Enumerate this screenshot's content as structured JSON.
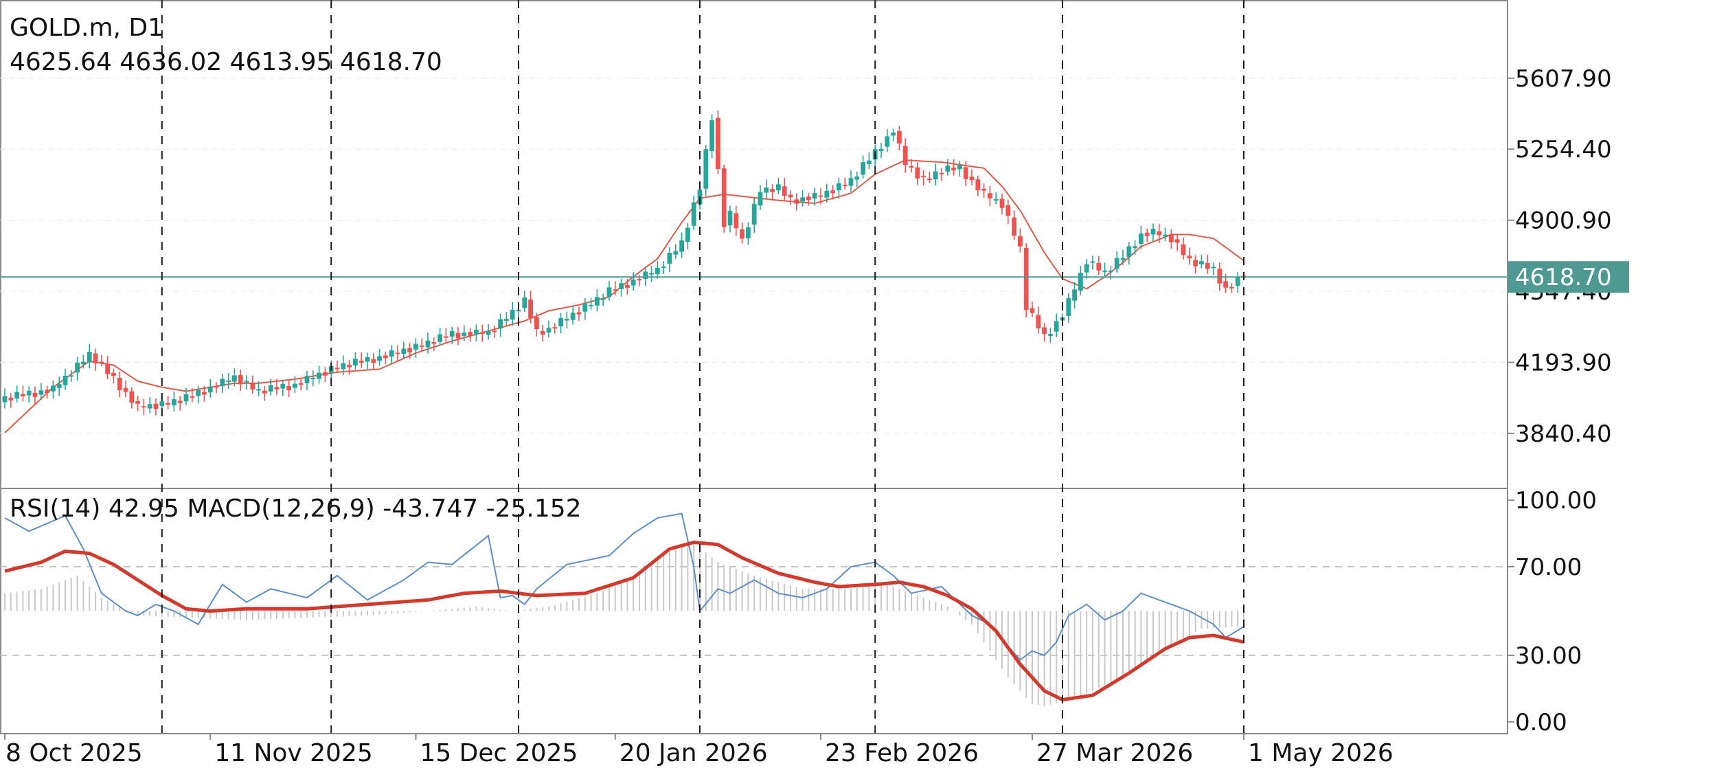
{
  "header": {
    "title": "GOLD.m, D1",
    "ohlc": "4625.64 4636.02 4613.95 4618.70",
    "indicators": "RSI(14) 42.95 MACD(12,26,9) -43.747 -25.152"
  },
  "chart_data": {
    "type": "candlestick",
    "symbol": "GOLD.m",
    "timeframe": "D1",
    "current_price": 4618.7,
    "current_price_label": "4618.70",
    "ohlc_last": {
      "open": 4625.64,
      "high": 4636.02,
      "low": 4613.95,
      "close": 4618.7
    },
    "price_ylim": [
      3570,
      5990
    ],
    "price_ticks": [
      3840.4,
      4193.9,
      4547.4,
      4900.9,
      5254.4,
      5607.9
    ],
    "price_tick_labels": [
      "3840.40",
      "4193.90",
      "4547.40",
      "4900.90",
      "5254.40",
      "5607.90"
    ],
    "x_labels": [
      "8 Oct 2025",
      "11 Nov 2025",
      "15 Dec 2025",
      "20 Jan 2026",
      "23 Feb 2026",
      "27 Mar 2026",
      "1 May 2026"
    ],
    "indicator_ylim": [
      -5,
      105
    ],
    "indicator_ticks": [
      0,
      30,
      70,
      100
    ],
    "indicator_tick_labels": [
      "0.00",
      "30.00",
      "70.00",
      "100.00"
    ],
    "indicator_levels": [
      30,
      70
    ],
    "close_points": [
      [
        0,
        4015
      ],
      [
        8,
        4060
      ],
      [
        14,
        4235
      ],
      [
        18,
        4112
      ],
      [
        22,
        3970
      ],
      [
        26,
        3984
      ],
      [
        30,
        4015
      ],
      [
        38,
        4120
      ],
      [
        42,
        4050
      ],
      [
        48,
        4082
      ],
      [
        55,
        4172
      ],
      [
        62,
        4219
      ],
      [
        68,
        4270
      ],
      [
        74,
        4335
      ],
      [
        80,
        4340
      ],
      [
        86,
        4497
      ],
      [
        88,
        4345
      ],
      [
        90,
        4360
      ],
      [
        95,
        4450
      ],
      [
        100,
        4547
      ],
      [
        104,
        4600
      ],
      [
        108,
        4655
      ],
      [
        112,
        4790
      ],
      [
        115,
        5060
      ],
      [
        117,
        5420
      ],
      [
        119,
        4880
      ],
      [
        120,
        4930
      ],
      [
        122,
        4800
      ],
      [
        125,
        5050
      ],
      [
        128,
        5060
      ],
      [
        130,
        5000
      ],
      [
        135,
        5023
      ],
      [
        140,
        5100
      ],
      [
        144,
        5240
      ],
      [
        147,
        5350
      ],
      [
        149,
        5180
      ],
      [
        152,
        5100
      ],
      [
        155,
        5150
      ],
      [
        158,
        5160
      ],
      [
        162,
        5030
      ],
      [
        165,
        4980
      ],
      [
        168,
        4760
      ],
      [
        169,
        4470
      ],
      [
        170,
        4420
      ],
      [
        172,
        4320
      ],
      [
        175,
        4430
      ],
      [
        177,
        4560
      ],
      [
        179,
        4700
      ],
      [
        182,
        4640
      ],
      [
        185,
        4720
      ],
      [
        188,
        4830
      ],
      [
        190,
        4840
      ],
      [
        193,
        4810
      ],
      [
        196,
        4700
      ],
      [
        200,
        4655
      ],
      [
        202,
        4560
      ],
      [
        205,
        4618.7
      ]
    ],
    "ma_points": [
      [
        0,
        3843
      ],
      [
        8,
        4070
      ],
      [
        14,
        4200
      ],
      [
        18,
        4180
      ],
      [
        22,
        4100
      ],
      [
        26,
        4070
      ],
      [
        30,
        4050
      ],
      [
        38,
        4090
      ],
      [
        42,
        4090
      ],
      [
        48,
        4110
      ],
      [
        55,
        4145
      ],
      [
        62,
        4160
      ],
      [
        68,
        4240
      ],
      [
        74,
        4300
      ],
      [
        80,
        4350
      ],
      [
        86,
        4400
      ],
      [
        90,
        4450
      ],
      [
        95,
        4480
      ],
      [
        100,
        4520
      ],
      [
        104,
        4620
      ],
      [
        108,
        4710
      ],
      [
        112,
        4890
      ],
      [
        115,
        5010
      ],
      [
        119,
        5030
      ],
      [
        122,
        5020
      ],
      [
        128,
        5000
      ],
      [
        134,
        4985
      ],
      [
        140,
        5035
      ],
      [
        144,
        5130
      ],
      [
        149,
        5200
      ],
      [
        155,
        5190
      ],
      [
        162,
        5160
      ],
      [
        165,
        5070
      ],
      [
        168,
        4950
      ],
      [
        172,
        4740
      ],
      [
        175,
        4610
      ],
      [
        179,
        4560
      ],
      [
        182,
        4620
      ],
      [
        185,
        4690
      ],
      [
        188,
        4770
      ],
      [
        193,
        4830
      ],
      [
        196,
        4830
      ],
      [
        200,
        4810
      ],
      [
        205,
        4700
      ]
    ],
    "rsi_points": [
      [
        0,
        92
      ],
      [
        4,
        86
      ],
      [
        10,
        93
      ],
      [
        13,
        78
      ],
      [
        16,
        58
      ],
      [
        20,
        50
      ],
      [
        22,
        48
      ],
      [
        25,
        53
      ],
      [
        28,
        50
      ],
      [
        32,
        44
      ],
      [
        36,
        62
      ],
      [
        40,
        54
      ],
      [
        44,
        60
      ],
      [
        50,
        56
      ],
      [
        55,
        66
      ],
      [
        60,
        55
      ],
      [
        66,
        64
      ],
      [
        70,
        72
      ],
      [
        74,
        71
      ],
      [
        80,
        84
      ],
      [
        82,
        56
      ],
      [
        84,
        57
      ],
      [
        86,
        53
      ],
      [
        88,
        60
      ],
      [
        93,
        71
      ],
      [
        100,
        75
      ],
      [
        104,
        85
      ],
      [
        108,
        92
      ],
      [
        112,
        94
      ],
      [
        114,
        70
      ],
      [
        115,
        50
      ],
      [
        118,
        60
      ],
      [
        120,
        58
      ],
      [
        124,
        64
      ],
      [
        128,
        58
      ],
      [
        132,
        56
      ],
      [
        136,
        60
      ],
      [
        140,
        70
      ],
      [
        144,
        72
      ],
      [
        147,
        66
      ],
      [
        150,
        58
      ],
      [
        155,
        61
      ],
      [
        160,
        48
      ],
      [
        163,
        44
      ],
      [
        166,
        34
      ],
      [
        168,
        28
      ],
      [
        170,
        32
      ],
      [
        172,
        30
      ],
      [
        174,
        36
      ],
      [
        176,
        48
      ],
      [
        179,
        53
      ],
      [
        182,
        46
      ],
      [
        185,
        50
      ],
      [
        188,
        58
      ],
      [
        192,
        54
      ],
      [
        196,
        50
      ],
      [
        200,
        44
      ],
      [
        202,
        38
      ],
      [
        205,
        42.95
      ]
    ],
    "signal_points": [
      [
        0,
        68
      ],
      [
        6,
        72
      ],
      [
        10,
        77
      ],
      [
        14,
        76
      ],
      [
        18,
        71
      ],
      [
        22,
        64
      ],
      [
        26,
        57
      ],
      [
        30,
        51
      ],
      [
        34,
        50
      ],
      [
        40,
        51
      ],
      [
        50,
        51
      ],
      [
        60,
        53
      ],
      [
        70,
        55
      ],
      [
        76,
        58
      ],
      [
        82,
        59
      ],
      [
        88,
        57
      ],
      [
        96,
        58
      ],
      [
        104,
        65
      ],
      [
        110,
        78
      ],
      [
        114,
        81
      ],
      [
        118,
        80
      ],
      [
        122,
        74
      ],
      [
        128,
        67
      ],
      [
        134,
        63
      ],
      [
        138,
        61
      ],
      [
        144,
        62
      ],
      [
        148,
        63
      ],
      [
        152,
        61
      ],
      [
        156,
        57
      ],
      [
        160,
        51
      ],
      [
        164,
        41
      ],
      [
        168,
        26
      ],
      [
        172,
        14
      ],
      [
        175,
        10
      ],
      [
        180,
        12
      ],
      [
        186,
        22
      ],
      [
        192,
        33
      ],
      [
        196,
        38
      ],
      [
        200,
        39
      ],
      [
        205,
        36
      ]
    ],
    "macd_hist_points": [
      [
        0,
        58
      ],
      [
        6,
        60
      ],
      [
        12,
        66
      ],
      [
        16,
        56
      ],
      [
        22,
        48
      ],
      [
        30,
        47
      ],
      [
        40,
        46
      ],
      [
        50,
        47
      ],
      [
        60,
        48
      ],
      [
        70,
        50
      ],
      [
        78,
        52
      ],
      [
        84,
        50
      ],
      [
        90,
        52
      ],
      [
        98,
        58
      ],
      [
        104,
        66
      ],
      [
        110,
        77
      ],
      [
        114,
        81
      ],
      [
        118,
        72
      ],
      [
        124,
        66
      ],
      [
        132,
        60
      ],
      [
        140,
        60
      ],
      [
        146,
        62
      ],
      [
        150,
        58
      ],
      [
        156,
        52
      ],
      [
        160,
        44
      ],
      [
        166,
        20
      ],
      [
        170,
        8
      ],
      [
        172,
        7
      ],
      [
        176,
        10
      ],
      [
        180,
        14
      ],
      [
        186,
        22
      ],
      [
        192,
        33
      ],
      [
        198,
        42
      ],
      [
        205,
        43
      ]
    ],
    "xlabel": "",
    "ylabel": "",
    "grid": true,
    "legend": "none"
  },
  "colors": {
    "bull": "#26a69a",
    "bear": "#ef5350",
    "ma": "#e05a47",
    "rsi": "#5b8fc9",
    "signal": "#d33a2c",
    "histogram": "#c8c8c8",
    "price_line": "#4e9a92",
    "label_bg": "#4e9a92"
  }
}
